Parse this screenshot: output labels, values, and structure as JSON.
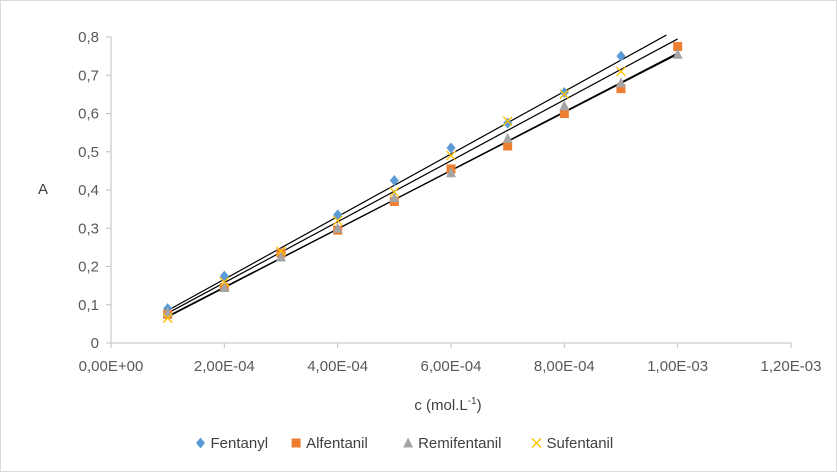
{
  "chart_data": {
    "type": "scatter",
    "title": "",
    "xlabel": "c (mol.L",
    "xlabel_sup": "-1",
    "xlabel_close": ")",
    "ylabel": "A",
    "xlim": [
      0,
      0.0012
    ],
    "ylim": [
      0,
      0.8
    ],
    "x_ticks": [
      0,
      0.0002,
      0.0004,
      0.0006,
      0.0008,
      0.001,
      0.0012
    ],
    "x_tick_labels": [
      "0,00E+00",
      "2,00E-04",
      "4,00E-04",
      "6,00E-04",
      "8,00E-04",
      "1,00E-03",
      "1,20E-03"
    ],
    "y_ticks": [
      0,
      0.1,
      0.2,
      0.3,
      0.4,
      0.5,
      0.6,
      0.7,
      0.8
    ],
    "y_tick_labels": [
      "0",
      "0,1",
      "0,2",
      "0,3",
      "0,4",
      "0,5",
      "0,6",
      "0,7",
      "0,8"
    ],
    "grid": false,
    "legend_position": "bottom",
    "x": [
      0.0001,
      0.0002,
      0.0003,
      0.0004,
      0.0005,
      0.0006,
      0.0007,
      0.0008,
      0.0009,
      0.001
    ],
    "series": [
      {
        "name": "Fentanyl",
        "marker": "diamond",
        "color": "#5b9bd5",
        "values": [
          0.09,
          0.175,
          0.235,
          0.335,
          0.425,
          0.51,
          0.575,
          0.655,
          0.75,
          null
        ],
        "trendline": {
          "x0": 0.0001,
          "y0": 0.085,
          "x1": 0.00098,
          "y1": 0.805
        }
      },
      {
        "name": "Alfentanil",
        "marker": "square",
        "color": "#ed7d31",
        "values": [
          0.075,
          0.145,
          0.235,
          0.295,
          0.37,
          0.455,
          0.515,
          0.6,
          0.665,
          0.775
        ],
        "trendline": {
          "x0": 0.0001,
          "y0": 0.068,
          "x1": 0.001,
          "y1": 0.758
        }
      },
      {
        "name": "Remifentanil",
        "marker": "triangle",
        "color": "#a5a5a5",
        "values": [
          0.08,
          0.145,
          0.225,
          0.3,
          0.38,
          0.445,
          0.535,
          0.62,
          0.68,
          0.755
        ],
        "trendline": {
          "x0": 0.0001,
          "y0": 0.07,
          "x1": 0.001,
          "y1": 0.755
        }
      },
      {
        "name": "Sufentanil",
        "marker": "x",
        "color": "#ffc000",
        "values": [
          0.065,
          0.16,
          0.24,
          0.32,
          0.395,
          0.49,
          0.58,
          0.65,
          0.71,
          null
        ],
        "trendline": {
          "x0": 0.0001,
          "y0": 0.078,
          "x1": 0.001,
          "y1": 0.795
        }
      }
    ]
  }
}
